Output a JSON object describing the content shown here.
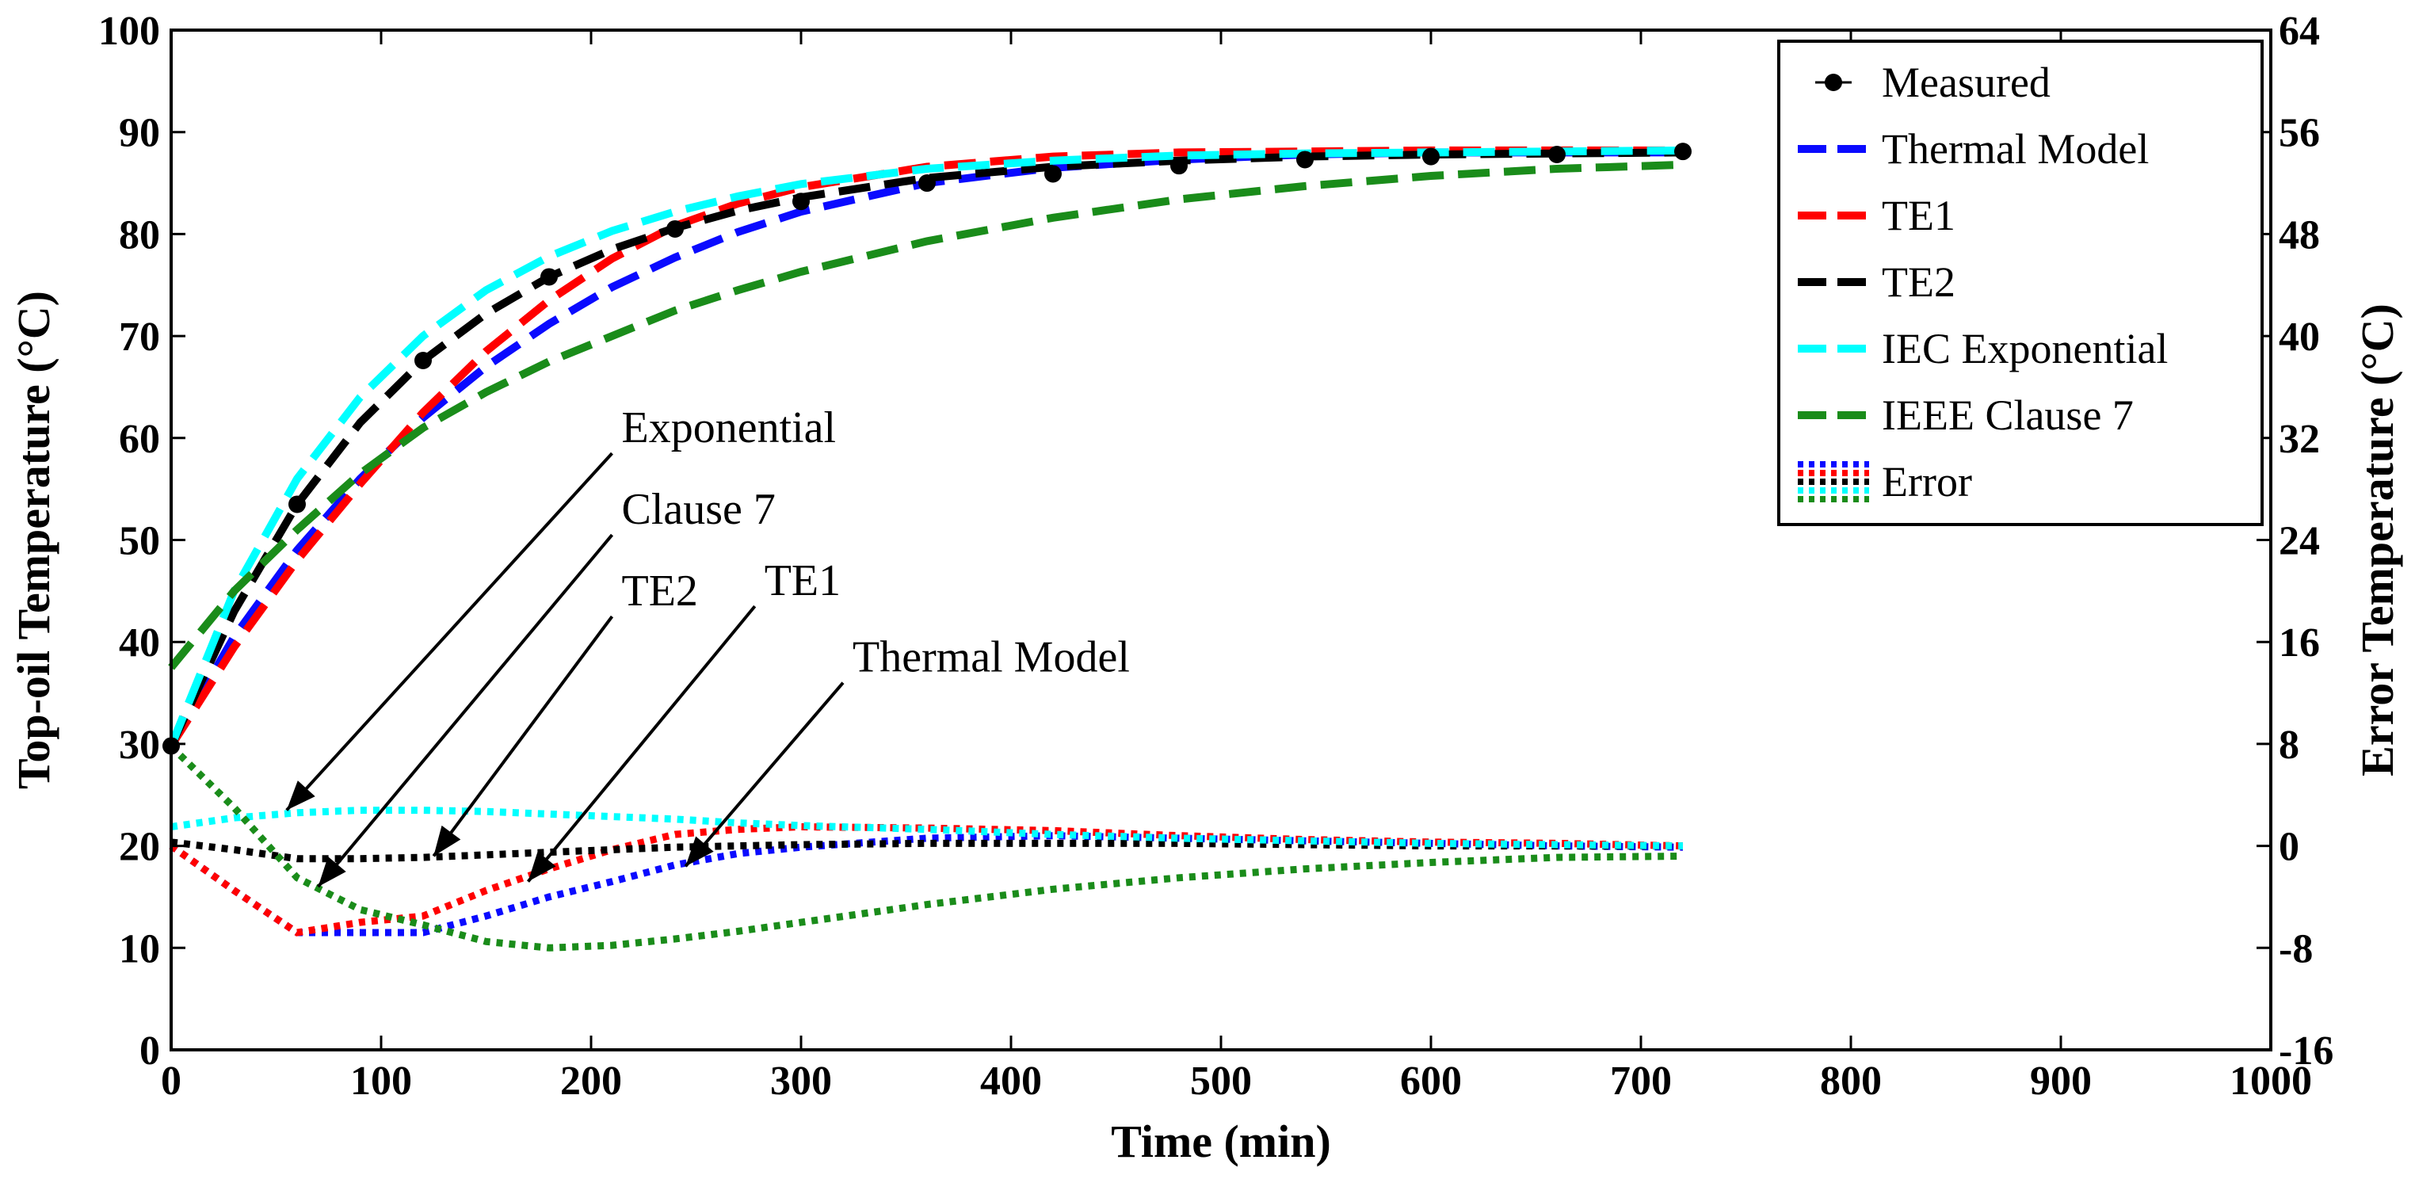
{
  "chart_data": {
    "type": "line",
    "xlabel": "Time (min)",
    "ylabel": "Top-oil Temperature (°C)",
    "y2label": "Error Temperature (°C)",
    "xlim": [
      0,
      1000
    ],
    "ylim": [
      0,
      100
    ],
    "y2lim": [
      -16,
      64
    ],
    "xticks": [
      0,
      100,
      200,
      300,
      400,
      500,
      600,
      700,
      800,
      900,
      1000
    ],
    "yticks": [
      0,
      10,
      20,
      30,
      40,
      50,
      60,
      70,
      80,
      90,
      100
    ],
    "y2ticks": [
      -16,
      -8,
      0,
      8,
      16,
      24,
      32,
      40,
      48,
      56,
      64
    ],
    "grid": false,
    "legend_position": "top-right",
    "legend": [
      "Measured",
      "Thermal Model",
      "TE1",
      "TE2",
      "IEC Exponential",
      "IEEE Clause 7",
      "Error"
    ],
    "measured": {
      "name": "Measured",
      "color": "#000000",
      "x": [
        0,
        60,
        120,
        180,
        240,
        300,
        360,
        420,
        480,
        540,
        600,
        660,
        720
      ],
      "y": [
        29.8,
        53.5,
        67.6,
        75.8,
        80.5,
        83.2,
        85.0,
        85.9,
        86.7,
        87.3,
        87.6,
        87.8,
        88.1
      ]
    },
    "series": [
      {
        "name": "Thermal Model",
        "color": "#0a0aff",
        "x": [
          0,
          30,
          60,
          90,
          120,
          150,
          180,
          210,
          240,
          270,
          300,
          360,
          420,
          480,
          540,
          600,
          660,
          720
        ],
        "y": [
          29.8,
          40.5,
          49,
          56,
          62,
          67,
          71.2,
          74.8,
          77.7,
          80.2,
          82.2,
          85,
          86.5,
          87.3,
          87.8,
          88,
          88,
          88
        ]
      },
      {
        "name": "TE1",
        "color": "#ff0000",
        "x": [
          0,
          30,
          60,
          90,
          120,
          150,
          180,
          210,
          240,
          270,
          300,
          360,
          420,
          480,
          540,
          600,
          660,
          720
        ],
        "y": [
          29.8,
          39.5,
          48,
          55.5,
          62.5,
          68.5,
          73.5,
          77.6,
          80.8,
          83,
          84.6,
          86.6,
          87.6,
          88,
          88.1,
          88.2,
          88.2,
          88.2
        ]
      },
      {
        "name": "TE2",
        "color": "#000000",
        "x": [
          0,
          30,
          60,
          90,
          120,
          150,
          180,
          210,
          240,
          270,
          300,
          360,
          420,
          480,
          540,
          600,
          660,
          720
        ],
        "y": [
          29.8,
          43,
          53.5,
          61.5,
          67.6,
          72.2,
          75.8,
          78.5,
          80.6,
          82.3,
          83.6,
          85.5,
          86.6,
          87.2,
          87.6,
          87.8,
          87.9,
          88
        ]
      },
      {
        "name": "IEC Exponential",
        "color": "#00ffff",
        "x": [
          0,
          30,
          60,
          90,
          120,
          150,
          180,
          210,
          240,
          270,
          300,
          360,
          420,
          480,
          540,
          600,
          660,
          720
        ],
        "y": [
          29.8,
          45,
          56,
          64,
          70,
          74.5,
          77.8,
          80.3,
          82.2,
          83.7,
          84.9,
          86.4,
          87.2,
          87.7,
          87.9,
          88,
          88.1,
          88.2
        ]
      },
      {
        "name": "IEEE Clause 7",
        "color": "#1a8c1a",
        "x": [
          0,
          30,
          60,
          90,
          120,
          150,
          180,
          210,
          240,
          270,
          300,
          360,
          420,
          480,
          540,
          600,
          660,
          720
        ],
        "y": [
          37.5,
          45,
          51,
          56.5,
          61,
          64.5,
          67.5,
          70,
          72.5,
          74.5,
          76.3,
          79.3,
          81.6,
          83.4,
          84.7,
          85.7,
          86.4,
          86.8
        ]
      }
    ],
    "error_series": [
      {
        "name": "Error Thermal Model",
        "color": "#0a0aff",
        "x": [
          0,
          30,
          60,
          90,
          120,
          150,
          180,
          210,
          240,
          270,
          300,
          360,
          420,
          480,
          540,
          600,
          660,
          720
        ],
        "y": [
          0,
          -3.5,
          -6.8,
          -6.8,
          -6.8,
          -5.5,
          -4,
          -2.8,
          -1.5,
          -0.6,
          -0.1,
          0.6,
          0.8,
          0.6,
          0.4,
          0.2,
          0,
          -0.1
        ]
      },
      {
        "name": "Error TE1",
        "color": "#ff0000",
        "x": [
          0,
          30,
          60,
          90,
          120,
          150,
          180,
          210,
          240,
          270,
          300,
          360,
          420,
          480,
          540,
          600,
          660,
          720
        ],
        "y": [
          0,
          -3.5,
          -6.8,
          -6,
          -5.5,
          -3.5,
          -1.8,
          -0.3,
          0.9,
          1.3,
          1.5,
          1.4,
          1.2,
          0.8,
          0.5,
          0.3,
          0.2,
          0
        ]
      },
      {
        "name": "Error TE2",
        "color": "#000000",
        "x": [
          0,
          30,
          60,
          90,
          120,
          150,
          180,
          210,
          240,
          270,
          300,
          360,
          420,
          480,
          540,
          600,
          660,
          720
        ],
        "y": [
          0.3,
          -0.3,
          -1,
          -1,
          -0.9,
          -0.7,
          -0.5,
          -0.3,
          -0.1,
          0,
          0.1,
          0.2,
          0.2,
          0.2,
          0.1,
          0,
          0,
          0
        ]
      },
      {
        "name": "Error IEC Exponential",
        "color": "#00ffff",
        "x": [
          0,
          30,
          60,
          90,
          120,
          150,
          180,
          210,
          240,
          270,
          300,
          360,
          420,
          480,
          540,
          600,
          660,
          720
        ],
        "y": [
          1.5,
          2.2,
          2.6,
          2.8,
          2.8,
          2.7,
          2.5,
          2.3,
          2.1,
          1.8,
          1.6,
          1.3,
          0.9,
          0.6,
          0.4,
          0.2,
          0.1,
          0
        ]
      },
      {
        "name": "Error IEEE Clause 7",
        "color": "#1a8c1a",
        "x": [
          0,
          30,
          60,
          90,
          120,
          150,
          180,
          210,
          240,
          270,
          300,
          360,
          420,
          480,
          540,
          600,
          660,
          720
        ],
        "y": [
          7.8,
          3,
          -2.5,
          -5,
          -6.2,
          -7.5,
          -8,
          -7.8,
          -7.3,
          -6.7,
          -6,
          -4.6,
          -3.4,
          -2.5,
          -1.8,
          -1.3,
          -0.9,
          -0.8
        ]
      }
    ],
    "annotations": [
      {
        "text": "Exponential",
        "label_at": [
          210,
          58.5
        ],
        "arrow_to": [
          55,
          23.5
        ]
      },
      {
        "text": "Clause 7",
        "label_at": [
          210,
          50.5
        ],
        "arrow_to": [
          70,
          16
        ]
      },
      {
        "text": "TE2",
        "label_at": [
          210,
          42.5
        ],
        "arrow_to": [
          125,
          19
        ]
      },
      {
        "text": "TE1",
        "label_at": [
          278,
          43.5
        ],
        "arrow_to": [
          170,
          16.5
        ]
      },
      {
        "text": "Thermal Model",
        "label_at": [
          320,
          36
        ],
        "arrow_to": [
          245,
          18
        ]
      }
    ]
  }
}
